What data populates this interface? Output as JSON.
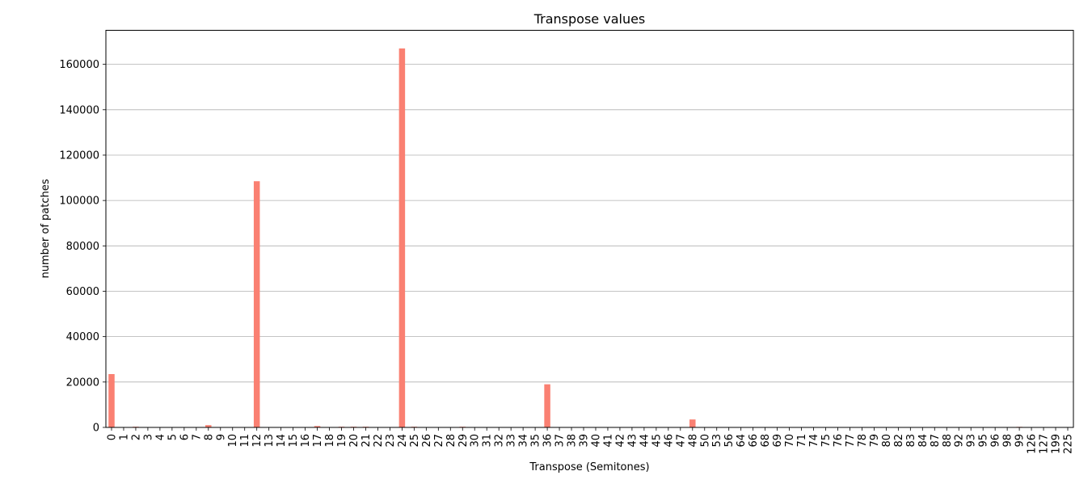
{
  "chart_data": {
    "type": "bar",
    "title": "Transpose values",
    "xlabel": "Transpose (Semitones)",
    "ylabel": "number of patches",
    "ylim": [
      0,
      175000
    ],
    "yticks": [
      0,
      20000,
      40000,
      60000,
      80000,
      100000,
      120000,
      140000,
      160000
    ],
    "grid": "y",
    "bar_color": "#fa8072",
    "categories": [
      "0",
      "1",
      "2",
      "3",
      "4",
      "5",
      "6",
      "7",
      "8",
      "9",
      "10",
      "11",
      "12",
      "13",
      "14",
      "15",
      "16",
      "17",
      "18",
      "19",
      "20",
      "21",
      "22",
      "23",
      "24",
      "25",
      "26",
      "27",
      "28",
      "29",
      "30",
      "31",
      "32",
      "33",
      "34",
      "35",
      "36",
      "37",
      "38",
      "39",
      "40",
      "41",
      "42",
      "43",
      "44",
      "45",
      "46",
      "47",
      "48",
      "50",
      "53",
      "56",
      "64",
      "66",
      "68",
      "69",
      "70",
      "71",
      "74",
      "75",
      "76",
      "77",
      "78",
      "79",
      "80",
      "82",
      "83",
      "84",
      "87",
      "88",
      "92",
      "93",
      "95",
      "96",
      "98",
      "99",
      "126",
      "127",
      "199",
      "225"
    ],
    "values": [
      23500,
      150,
      300,
      80,
      80,
      60,
      60,
      80,
      1000,
      80,
      80,
      80,
      108500,
      80,
      60,
      80,
      60,
      600,
      60,
      300,
      300,
      300,
      60,
      60,
      167000,
      300,
      60,
      60,
      60,
      300,
      60,
      60,
      60,
      60,
      60,
      60,
      19000,
      60,
      60,
      60,
      60,
      60,
      60,
      60,
      60,
      60,
      60,
      60,
      3500,
      60,
      60,
      60,
      60,
      60,
      60,
      60,
      60,
      60,
      60,
      60,
      60,
      60,
      60,
      60,
      60,
      60,
      60,
      60,
      60,
      60,
      60,
      60,
      60,
      60,
      60,
      250,
      60,
      60,
      60,
      60
    ]
  }
}
